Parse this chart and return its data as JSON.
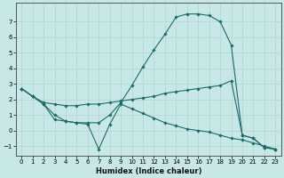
{
  "xlabel": "Humidex (Indice chaleur)",
  "background_color": "#c8e8e8",
  "grid_color": "#b8d8d8",
  "line_color": "#1a6b6b",
  "xlim": [
    -0.5,
    23.5
  ],
  "ylim": [
    -1.6,
    8.2
  ],
  "xticks": [
    0,
    1,
    2,
    3,
    4,
    5,
    6,
    7,
    8,
    9,
    10,
    11,
    12,
    13,
    14,
    15,
    16,
    17,
    18,
    19,
    20,
    21,
    22,
    23
  ],
  "yticks": [
    -1,
    0,
    1,
    2,
    3,
    4,
    5,
    6,
    7
  ],
  "series": [
    {
      "x": [
        0,
        1,
        2,
        3,
        4,
        5,
        6,
        7,
        8,
        9,
        10,
        11,
        12,
        13,
        14,
        15,
        16,
        17,
        18,
        19,
        20,
        21,
        22,
        23
      ],
      "y": [
        2.7,
        2.2,
        1.7,
        0.7,
        0.6,
        0.5,
        0.5,
        0.5,
        1.0,
        1.8,
        2.9,
        4.1,
        5.2,
        6.2,
        7.3,
        7.5,
        7.5,
        7.4,
        7.0,
        5.5,
        -0.3,
        -0.5,
        -1.1,
        -1.2
      ]
    },
    {
      "x": [
        0,
        1,
        2,
        3,
        4,
        5,
        6,
        7,
        8,
        9,
        10,
        11,
        12,
        13,
        14,
        15,
        16,
        17,
        18,
        19,
        20,
        21,
        22,
        23
      ],
      "y": [
        2.7,
        2.2,
        1.8,
        1.7,
        1.6,
        1.6,
        1.7,
        1.7,
        1.8,
        1.9,
        2.0,
        2.1,
        2.2,
        2.4,
        2.5,
        2.6,
        2.7,
        2.8,
        2.9,
        3.2,
        -0.3,
        -0.5,
        -1.1,
        -1.2
      ]
    },
    {
      "x": [
        0,
        1,
        2,
        3,
        4,
        5,
        6,
        7,
        8,
        9,
        10,
        11,
        12,
        13,
        14,
        15,
        16,
        17,
        18,
        19,
        20,
        21,
        22,
        23
      ],
      "y": [
        2.7,
        2.2,
        1.7,
        1.0,
        0.6,
        0.5,
        0.4,
        -1.2,
        0.4,
        1.7,
        1.4,
        1.1,
        0.8,
        0.5,
        0.3,
        0.1,
        0.0,
        -0.1,
        -0.3,
        -0.5,
        -0.6,
        -0.8,
        -1.0,
        -1.2
      ]
    }
  ]
}
